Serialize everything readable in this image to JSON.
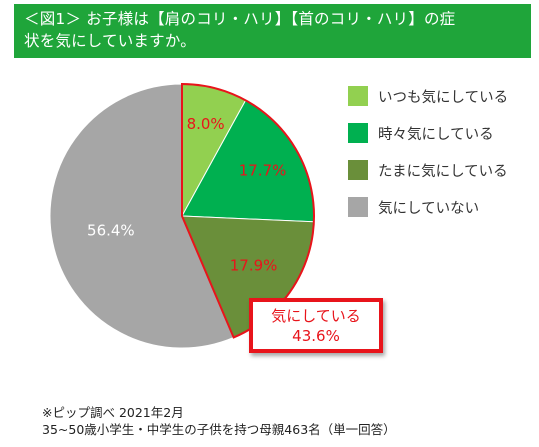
{
  "title": {
    "line1": "＜図1＞ お子様は【肩のコリ・ハリ】【首のコリ・ハリ】の症",
    "line2": "状を気にしていますか。"
  },
  "colors": {
    "title_bg": "#1fa53a",
    "highlight": "#e8141b",
    "slice_colors": [
      "#92d050",
      "#00b050",
      "#6a8f3a",
      "#a6a6a6"
    ]
  },
  "chart_data": {
    "type": "pie",
    "categories": [
      "いつも気にしている",
      "時々気にしている",
      "たまに気にしている",
      "気にしていない"
    ],
    "values": [
      8.0,
      17.7,
      17.9,
      56.4
    ],
    "labels": [
      "8.0%",
      "17.7%",
      "17.9%",
      "56.4%"
    ],
    "legend_position": "right",
    "highlight_group": "first three slices outlined in red"
  },
  "callout": {
    "line1": "気にしている",
    "line2": "43.6%"
  },
  "footnote": {
    "line1": "※ピップ調べ 2021年2月",
    "line2": "35~50歳小学生・中学生の子供を持つ母親463名（単一回答）"
  }
}
